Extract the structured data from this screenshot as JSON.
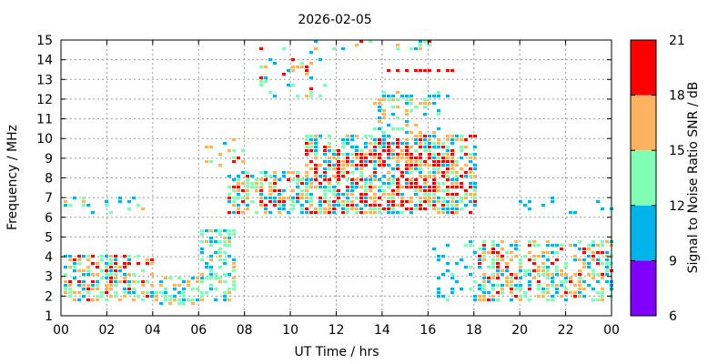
{
  "chart_data": {
    "type": "scatter",
    "title": "2026-02-05",
    "xlabel": "UT Time / hrs",
    "ylabel": "Frequency / MHz",
    "xlim": [
      0,
      24
    ],
    "ylim": [
      1,
      15
    ],
    "x_ticks": [
      "00",
      "02",
      "04",
      "06",
      "08",
      "10",
      "12",
      "14",
      "16",
      "18",
      "20",
      "22",
      "00"
    ],
    "y_ticks": [
      "1",
      "2",
      "3",
      "4",
      "5",
      "6",
      "7",
      "8",
      "9",
      "10",
      "11",
      "12",
      "13",
      "14",
      "15"
    ],
    "grid": true,
    "colorbar": {
      "label": "Signal to Noise Ratio SNR / dB",
      "ticks": [
        "6",
        "9",
        "12",
        "15",
        "18",
        "21"
      ],
      "range": [
        6,
        21
      ],
      "bands": [
        {
          "from": 6,
          "to": 9,
          "color": "#8000ff"
        },
        {
          "from": 9,
          "to": 12,
          "color": "#00b4eb"
        },
        {
          "from": 12,
          "to": 15,
          "color": "#80ffb4"
        },
        {
          "from": 15,
          "to": 18,
          "color": "#ffb360"
        },
        {
          "from": 18,
          "to": 21,
          "color": "#ff0000"
        }
      ]
    },
    "clusters": [
      {
        "x": [
          0.0,
          4.0
        ],
        "y": [
          1.7,
          4.2
        ],
        "density": 0.55,
        "snr": [
          10,
          20
        ]
      },
      {
        "x": [
          0.0,
          3.5
        ],
        "y": [
          6.2,
          7.1
        ],
        "density": 0.25,
        "snr": [
          9,
          16
        ]
      },
      {
        "x": [
          4.0,
          6.0
        ],
        "y": [
          1.6,
          3.0
        ],
        "density": 0.55,
        "snr": [
          10,
          17
        ]
      },
      {
        "x": [
          6.0,
          7.6
        ],
        "y": [
          1.8,
          5.4
        ],
        "density": 0.5,
        "snr": [
          10,
          16
        ]
      },
      {
        "x": [
          6.2,
          8.0
        ],
        "y": [
          8.6,
          10.1
        ],
        "density": 0.2,
        "snr": [
          10,
          19
        ]
      },
      {
        "x": [
          7.2,
          10.5
        ],
        "y": [
          6.2,
          8.5
        ],
        "density": 0.6,
        "snr": [
          9,
          20
        ]
      },
      {
        "x": [
          8.5,
          11.5
        ],
        "y": [
          12.0,
          14.7
        ],
        "density": 0.12,
        "snr": [
          9,
          20
        ]
      },
      {
        "x": [
          10.5,
          18.0
        ],
        "y": [
          6.2,
          10.2
        ],
        "density": 0.65,
        "snr": [
          9,
          21
        ]
      },
      {
        "x": [
          12.0,
          17.0
        ],
        "y": [
          8.6,
          9.4
        ],
        "density": 0.5,
        "snr": [
          17,
          21
        ]
      },
      {
        "x": [
          13.5,
          16.5
        ],
        "y": [
          10.2,
          12.5
        ],
        "density": 0.35,
        "snr": [
          9,
          18
        ]
      },
      {
        "x": [
          10.5,
          16.5
        ],
        "y": [
          14.5,
          15.0
        ],
        "density": 0.35,
        "snr": [
          9,
          20
        ]
      },
      {
        "x": [
          14.0,
          17.0
        ],
        "y": [
          12.1,
          12.3
        ],
        "density": 0.6,
        "snr": [
          9,
          12
        ]
      },
      {
        "x": [
          14.0,
          17.0
        ],
        "y": [
          13.5,
          13.7
        ],
        "density": 0.7,
        "snr": [
          19,
          21
        ]
      },
      {
        "x": [
          14.5,
          17.5
        ],
        "y": [
          7.6,
          8.1
        ],
        "density": 0.5,
        "snr": [
          17,
          21
        ]
      },
      {
        "x": [
          16.0,
          19.0
        ],
        "y": [
          1.8,
          5.0
        ],
        "density": 0.2,
        "snr": [
          9,
          14
        ]
      },
      {
        "x": [
          18.0,
          24.0
        ],
        "y": [
          1.7,
          5.0
        ],
        "density": 0.55,
        "snr": [
          9,
          20
        ]
      },
      {
        "x": [
          19.0,
          24.0
        ],
        "y": [
          6.2,
          7.2
        ],
        "density": 0.12,
        "snr": [
          9,
          12
        ]
      }
    ]
  }
}
